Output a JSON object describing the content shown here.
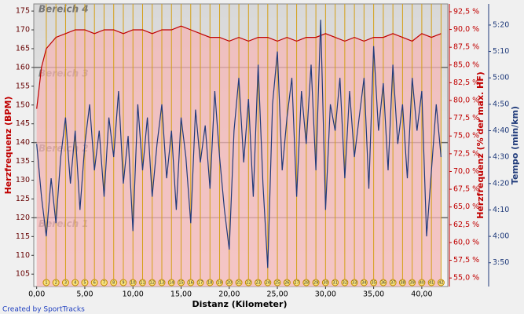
{
  "chart_data": {
    "type": "line",
    "xlabel": "Distanz (Kilometer)",
    "ylabel": "Herzfrequenz (BPM)",
    "y2label": "Herzfrequenz (% der max. HF)",
    "y3label": "Tempo (min/km)",
    "xlim": [
      -0.3,
      42.7
    ],
    "xticks": [
      {
        "value": 0,
        "label": "0,00"
      },
      {
        "value": 5,
        "label": "5,00"
      },
      {
        "value": 10,
        "label": "10,00"
      },
      {
        "value": 15,
        "label": "15,00"
      },
      {
        "value": 20,
        "label": "20,00"
      },
      {
        "value": 25,
        "label": "25,00"
      },
      {
        "value": 30,
        "label": "30,00"
      },
      {
        "value": 35,
        "label": "35,00"
      },
      {
        "value": 40,
        "label": "40,00"
      }
    ],
    "ylim": [
      101.7,
      176.9
    ],
    "yticks": [
      105,
      110,
      115,
      120,
      125,
      130,
      135,
      140,
      145,
      150,
      155,
      160,
      165,
      170,
      175
    ],
    "y2lim": [
      53.8,
      93.6
    ],
    "y2ticks": [
      {
        "value": 55,
        "label": "55,0 %"
      },
      {
        "value": 57.5,
        "label": "57,5 %"
      },
      {
        "value": 60,
        "label": "60,0 %"
      },
      {
        "value": 62.5,
        "label": "62,5 %"
      },
      {
        "value": 65,
        "label": "65,0 %"
      },
      {
        "value": 67.5,
        "label": "67,5 %"
      },
      {
        "value": 70,
        "label": "70,0 %"
      },
      {
        "value": 72.5,
        "label": "72,5 %"
      },
      {
        "value": 75,
        "label": "75,0 %"
      },
      {
        "value": 77.5,
        "label": "77,5 %"
      },
      {
        "value": 80,
        "label": "80,0 %"
      },
      {
        "value": 82.5,
        "label": "82,5 %"
      },
      {
        "value": 85,
        "label": "85,0 %"
      },
      {
        "value": 87.5,
        "label": "87,5 %"
      },
      {
        "value": 90,
        "label": "90,0 %"
      },
      {
        "value": 92.5,
        "label": "92,5 %"
      }
    ],
    "y3lim": [
      221,
      328
    ],
    "y3ticks": [
      {
        "value": 230,
        "label": "3:50"
      },
      {
        "value": 240,
        "label": "4:00"
      },
      {
        "value": 250,
        "label": "4:10"
      },
      {
        "value": 260,
        "label": "4:20"
      },
      {
        "value": 270,
        "label": "4:30"
      },
      {
        "value": 280,
        "label": "4:40"
      },
      {
        "value": 290,
        "label": "4:50"
      },
      {
        "value": 300,
        "label": "5:00"
      },
      {
        "value": 310,
        "label": "5:10"
      },
      {
        "value": 320,
        "label": "5:20"
      }
    ],
    "zone_boundaries": [
      120,
      140,
      160
    ],
    "zone_labels": [
      "Bereich 1",
      "Bereich 2",
      "Bereich 3",
      "Bereich 4"
    ],
    "laps": [
      1,
      2,
      3,
      4,
      5,
      6,
      7,
      8,
      9,
      10,
      11,
      12,
      13,
      14,
      15,
      16,
      17,
      18,
      19,
      20,
      21,
      22,
      23,
      24,
      25,
      26,
      27,
      28,
      29,
      30,
      31,
      32,
      33,
      34,
      35,
      36,
      37,
      38,
      39,
      40,
      41,
      42
    ],
    "series": [
      {
        "color": "#c00000",
        "axis": "y",
        "x": [
          0,
          0.5,
          1,
          2,
          3,
          4,
          5,
          6,
          7,
          8,
          9,
          10,
          11,
          12,
          13,
          14,
          15,
          16,
          17,
          18,
          19,
          20,
          21,
          22,
          23,
          24,
          25,
          26,
          27,
          28,
          29,
          30,
          31,
          32,
          33,
          34,
          35,
          36,
          37,
          38,
          39,
          40,
          41,
          42
        ],
        "values": [
          149,
          160,
          165,
          168,
          169,
          170,
          170,
          169,
          170,
          170,
          169,
          170,
          170,
          169,
          170,
          170,
          171,
          170,
          169,
          168,
          168,
          167,
          168,
          167,
          168,
          168,
          167,
          168,
          167,
          168,
          168,
          169,
          168,
          167,
          168,
          167,
          168,
          168,
          169,
          168,
          167,
          169,
          168,
          169
        ]
      },
      {
        "color": "#1f3a7a",
        "axis": "y3",
        "x": [
          0,
          0.5,
          1,
          1.5,
          2,
          2.5,
          3,
          3.5,
          4,
          4.5,
          5,
          5.5,
          6,
          6.5,
          7,
          7.5,
          8,
          8.5,
          9,
          9.5,
          10,
          10.5,
          11,
          11.5,
          12,
          12.5,
          13,
          13.5,
          14,
          14.5,
          15,
          15.5,
          16,
          16.5,
          17,
          17.5,
          18,
          18.5,
          19,
          19.5,
          20,
          20.5,
          21,
          21.5,
          22,
          22.5,
          23,
          23.5,
          24,
          24.5,
          25,
          25.5,
          26,
          26.5,
          27,
          27.5,
          28,
          28.5,
          29,
          29.5,
          30,
          30.5,
          31,
          31.5,
          32,
          32.5,
          33,
          33.5,
          34,
          34.5,
          35,
          35.5,
          36,
          36.5,
          37,
          37.5,
          38,
          38.5,
          39,
          39.5,
          40,
          40.5,
          41,
          41.5,
          42
        ],
        "values": [
          275,
          255,
          240,
          262,
          245,
          270,
          285,
          260,
          280,
          250,
          275,
          290,
          265,
          280,
          255,
          285,
          270,
          295,
          260,
          278,
          242,
          290,
          265,
          285,
          255,
          275,
          290,
          262,
          280,
          250,
          285,
          270,
          245,
          288,
          268,
          282,
          258,
          295,
          270,
          250,
          235,
          280,
          300,
          268,
          292,
          255,
          305,
          260,
          228,
          290,
          310,
          265,
          285,
          300,
          255,
          295,
          275,
          305,
          265,
          322,
          250,
          290,
          280,
          300,
          262,
          295,
          270,
          285,
          300,
          258,
          312,
          280,
          298,
          265,
          305,
          275,
          290,
          262,
          300,
          280,
          295,
          240,
          265,
          290,
          270
        ]
      }
    ]
  },
  "footer": "Created by SportTracks"
}
